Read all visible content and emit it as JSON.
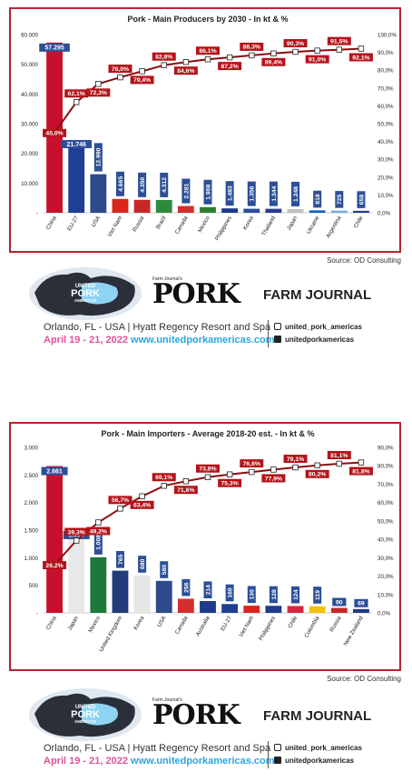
{
  "charts": [
    {
      "title": "Pork - Main Producers by 2030 - In kt & %",
      "source": "Source: OD Consulting"
    },
    {
      "title": "Pork - Main Importers - Average 2018-20 est. - In kt & %",
      "source": "Source: OD Consulting"
    }
  ],
  "chart_data": [
    {
      "type": "bar",
      "title": "Pork - Main Producers by 2030 - In kt & %",
      "categories": [
        "China",
        "EU-27",
        "USA",
        "Viet Nam",
        "Russia",
        "Brazil",
        "Canada",
        "Mexico",
        "Philippines",
        "Korea",
        "Thailand",
        "Japan",
        "Ukraine",
        "Argentina",
        "Chile"
      ],
      "series": [
        {
          "values": [
            57295,
            21746,
            12990,
            4665,
            4350,
            4312,
            2281,
            1908,
            1483,
            1356,
            1344,
            1248,
            818,
            725,
            658
          ],
          "labels": [
            "57.295",
            "21.746",
            "12.990",
            "4.665",
            "4.350",
            "4.312",
            "2.281",
            "1.908",
            "1.483",
            "1.356",
            "1.344",
            "1.248",
            "818",
            "725",
            "658"
          ]
        },
        {
          "type": "line",
          "axis": "right",
          "values": [
            45.0,
            62.1,
            72.3,
            76.0,
            79.4,
            82.8,
            84.6,
            86.1,
            87.2,
            88.3,
            89.4,
            90.3,
            91.0,
            91.5,
            92.1
          ],
          "labels": [
            "45,0%",
            "62,1%",
            "72,3%",
            "76,0%",
            "79,4%",
            "82,8%",
            "84,6%",
            "86,1%",
            "87,2%",
            "88,3%",
            "89,4%",
            "90,3%",
            "91,0%",
            "91,5%",
            "92,1%"
          ]
        }
      ],
      "ylim": [
        0,
        60000
      ],
      "yticks": [
        "-",
        "10.000",
        "20.000",
        "30.000",
        "40.000",
        "50.000",
        "60.000"
      ],
      "y2lim": [
        0,
        100
      ],
      "y2ticks": [
        "0,0%",
        "10,0%",
        "20,0%",
        "30,0%",
        "40,0%",
        "50,0%",
        "60,0%",
        "70,0%",
        "80,0%",
        "90,0%",
        "100,0%"
      ],
      "bar_colors": [
        "#c8102e",
        "#1f3f95",
        "#2d4a8a",
        "#da251d",
        "#c62828",
        "#2e8b3c",
        "#d32f2f",
        "#2e7d32",
        "#1e3a8a",
        "#2b4c9a",
        "#2b3a8f",
        "#c0c0c0",
        "#1565c0",
        "#75aadb",
        "#1e3f8f"
      ],
      "bar_label_color": "#2c4f96",
      "line_color": "#8b0e10",
      "line_label_color": "#b3141a",
      "grid": false
    },
    {
      "type": "bar",
      "title": "Pork - Main Importers - Average 2018-20 est. - In kt & %",
      "categories": [
        "China",
        "Japan",
        "Mexico",
        "United Kingdom",
        "Korea",
        "USA",
        "Canada",
        "Australia",
        "EU-27",
        "Viet Nam",
        "Philippines",
        "Chile",
        "Colombia",
        "Russia",
        "New Zealand"
      ],
      "series": [
        {
          "values": [
            2661,
            1336,
            1008,
            765,
            680,
            580,
            256,
            214,
            160,
            130,
            128,
            124,
            119,
            90,
            69
          ],
          "labels": [
            "2.661",
            "1.336",
            "1.008",
            "765",
            "680",
            "580",
            "256",
            "214",
            "160",
            "130",
            "128",
            "124",
            "119",
            "90",
            "69"
          ]
        },
        {
          "type": "line",
          "axis": "right",
          "values": [
            26.2,
            39.3,
            49.2,
            56.7,
            63.4,
            69.1,
            71.6,
            73.8,
            75.3,
            76.6,
            77.9,
            79.1,
            80.2,
            81.1,
            81.8
          ],
          "labels": [
            "26,2%",
            "39,3%",
            "49,2%",
            "56,7%",
            "63,4%",
            "69,1%",
            "71,6%",
            "73,8%",
            "75,3%",
            "76,6%",
            "77,9%",
            "79,1%",
            "80,2%",
            "81,1%",
            "81,8%"
          ]
        }
      ],
      "ylim": [
        0,
        3000
      ],
      "yticks": [
        "-",
        "500",
        "1.000",
        "1.500",
        "2.000",
        "2.500",
        "3.000"
      ],
      "y2lim": [
        0,
        90
      ],
      "y2ticks": [
        "0,0%",
        "10,0%",
        "20,0%",
        "30,0%",
        "40,0%",
        "50,0%",
        "60,0%",
        "70,0%",
        "80,0%",
        "90,0%"
      ],
      "bar_colors": [
        "#c8102e",
        "#e8e8e8",
        "#1b7a3a",
        "#233b7a",
        "#e6e6e6",
        "#2d4a8a",
        "#d32f2f",
        "#1e3a8a",
        "#1f3f95",
        "#da251d",
        "#1e3a8a",
        "#d7263d",
        "#f4c20d",
        "#c62828",
        "#1e3a8a"
      ],
      "bar_label_color": "#2c4f96",
      "line_color": "#8b0e10",
      "line_label_color": "#b3141a",
      "grid": false
    }
  ],
  "banners": [
    {
      "globe_text": "UNITED PORK AMERICAS",
      "pork_small": "Farm Journal's",
      "pork_big": "PORK",
      "farm_journal": "FARM JOURNAL",
      "event_line": "Orlando, FL - USA | Hyatt Regency Resort and Spa",
      "event_date": "April 19 - 21, 2022",
      "event_url": "www.unitedporkamericas.com",
      "instagram": "united_pork_americas",
      "facebook": "unitedporkamericas"
    },
    {
      "globe_text": "UNITED PORK AMERICAS",
      "pork_small": "Farm Journal's",
      "pork_big": "PORK",
      "farm_journal": "FARM JOURNAL",
      "event_line": "Orlando, FL - USA | Hyatt Regency Resort and Spa",
      "event_date": "April 19 - 21, 2022",
      "event_url": "www.unitedporkamericas.com",
      "instagram": "united_pork_americas",
      "facebook": "unitedporkamericas"
    }
  ]
}
